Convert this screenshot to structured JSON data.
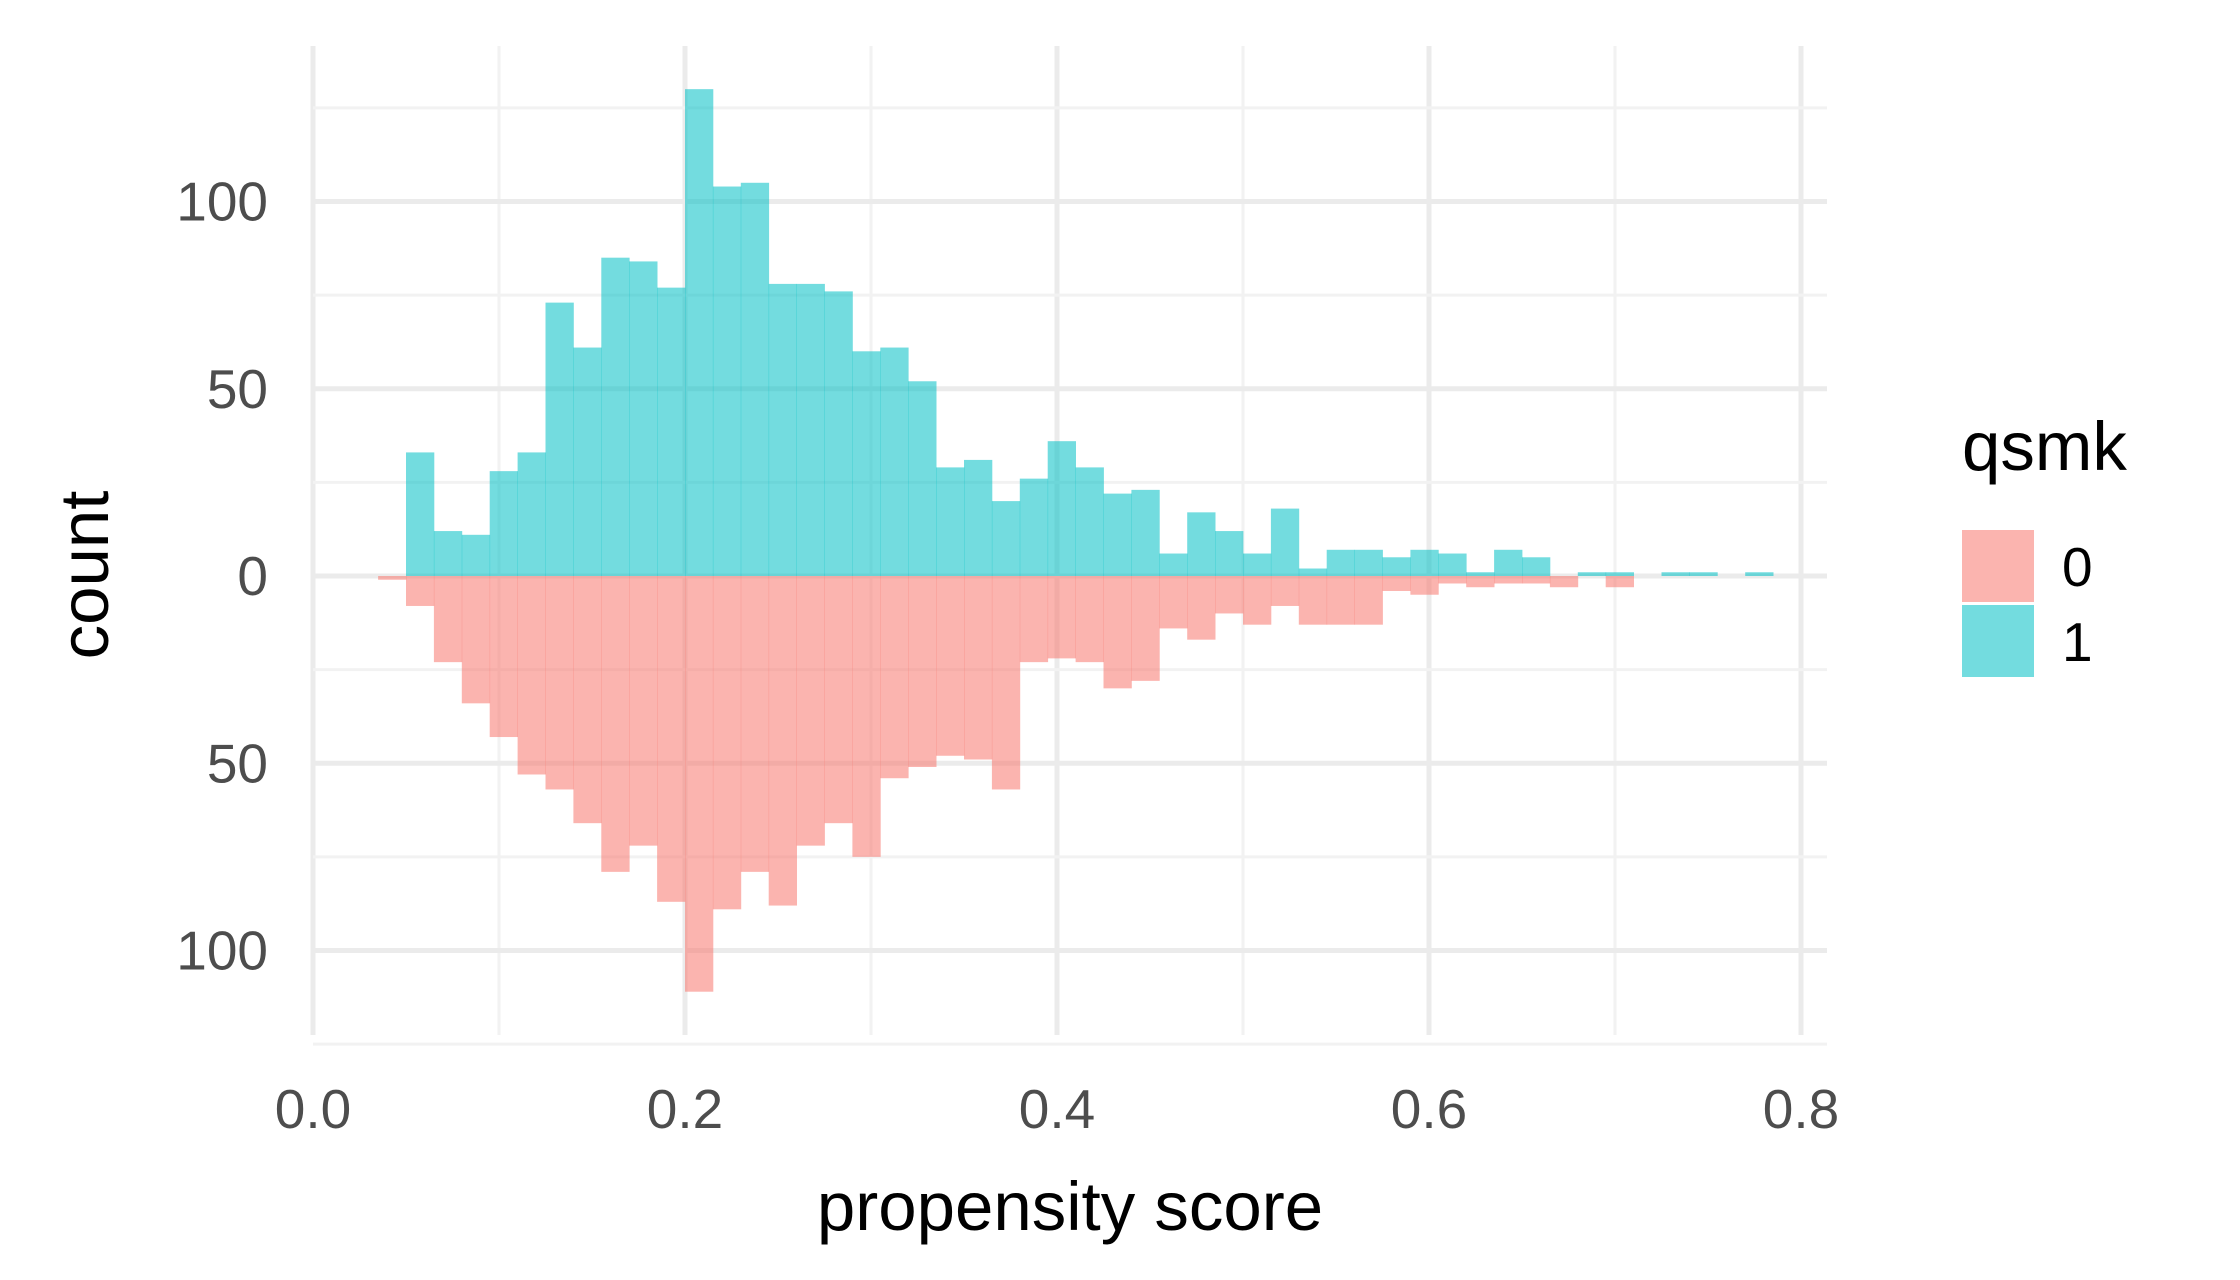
{
  "chart_data": {
    "type": "histogram",
    "title": "",
    "xlabel": "propensity score",
    "ylabel": "count",
    "xlim": [
      0,
      0.8
    ],
    "ylim": [
      -110,
      130
    ],
    "x_ticks": [
      "0.0",
      "0.2",
      "0.4",
      "0.6",
      "0.8"
    ],
    "x_tick_values": [
      0,
      0.2,
      0.4,
      0.6,
      0.8
    ],
    "y_ticks": [
      "100",
      "50",
      "0",
      "50",
      "100"
    ],
    "y_tick_values": [
      100,
      50,
      0,
      -50,
      -100
    ],
    "mirrored": true,
    "bin_width": 0.015,
    "bin_starts": [
      0.035,
      0.05,
      0.065,
      0.08,
      0.095,
      0.11,
      0.125,
      0.14,
      0.155,
      0.17,
      0.185,
      0.2,
      0.215,
      0.23,
      0.245,
      0.26,
      0.275,
      0.29,
      0.305,
      0.32,
      0.335,
      0.35,
      0.365,
      0.38,
      0.395,
      0.41,
      0.425,
      0.44,
      0.455,
      0.47,
      0.485,
      0.5,
      0.515,
      0.53,
      0.545,
      0.56,
      0.575,
      0.59,
      0.605,
      0.62,
      0.635,
      0.65,
      0.665,
      0.68,
      0.695,
      0.71,
      0.725,
      0.74,
      0.755,
      0.77
    ],
    "legend": {
      "title": "qsmk",
      "position": "right"
    },
    "series": [
      {
        "name": "0",
        "direction": "down",
        "color": "#F8766D",
        "values": [
          1,
          8,
          23,
          34,
          43,
          53,
          57,
          66,
          79,
          72,
          87,
          111,
          89,
          79,
          88,
          72,
          66,
          75,
          54,
          51,
          48,
          49,
          57,
          23,
          22,
          23,
          30,
          28,
          14,
          17,
          10,
          13,
          8,
          13,
          13,
          13,
          4,
          5,
          2,
          3,
          2,
          2,
          3,
          0,
          3,
          0,
          0,
          0,
          0,
          0
        ]
      },
      {
        "name": "1",
        "direction": "up",
        "color": "#00BFC4",
        "values": [
          0,
          33,
          12,
          11,
          28,
          33,
          73,
          61,
          85,
          84,
          77,
          130,
          104,
          105,
          78,
          78,
          76,
          60,
          61,
          52,
          29,
          31,
          20,
          26,
          36,
          29,
          22,
          23,
          6,
          17,
          12,
          6,
          18,
          2,
          7,
          7,
          5,
          7,
          6,
          1,
          7,
          5,
          0,
          1,
          1,
          0,
          1,
          1,
          0,
          1
        ]
      }
    ]
  },
  "colors": {
    "fill_0": "#F8766D",
    "fill_1": "#00BFC4",
    "grid_major": "#EBEBEB",
    "grid_minor": "#F2F2F2",
    "tick_text": "#4D4D4D"
  }
}
